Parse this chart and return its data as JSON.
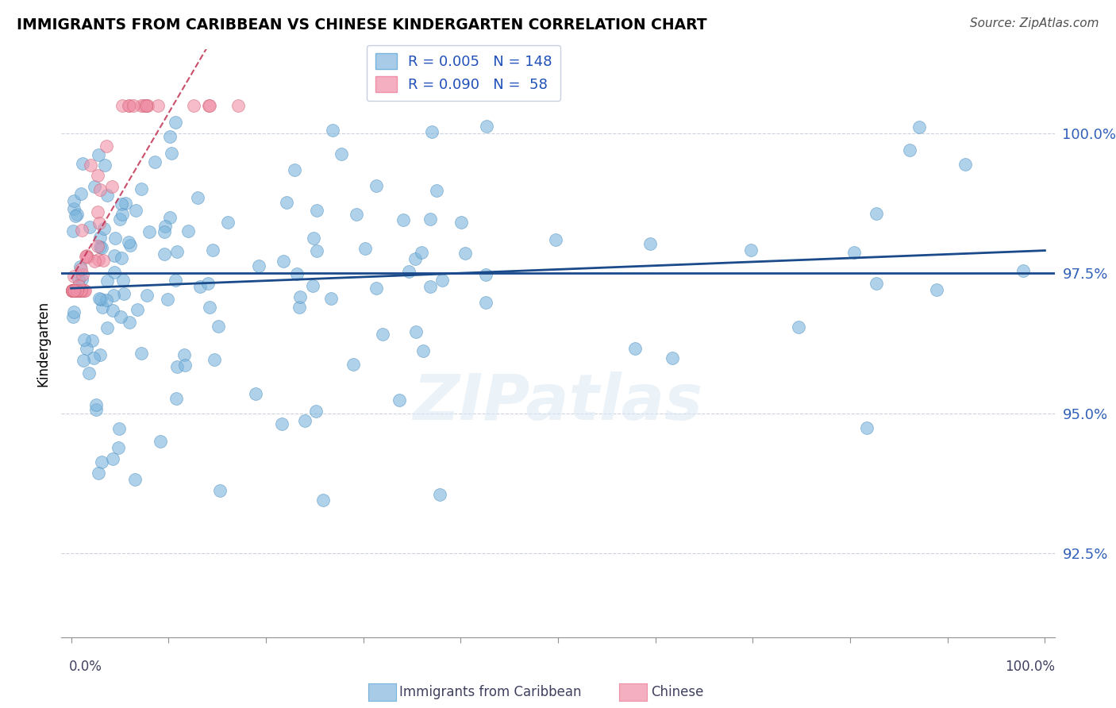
{
  "title": "IMMIGRANTS FROM CARIBBEAN VS CHINESE KINDERGARTEN CORRELATION CHART",
  "source": "Source: ZipAtlas.com",
  "ylabel": "Kindergarten",
  "r_caribbean": 0.005,
  "n_caribbean": 148,
  "r_chinese": 0.09,
  "n_chinese": 58,
  "color_caribbean": "#7ab4dc",
  "color_chinese": "#f090a8",
  "color_trend_caribbean": "#1a4a8a",
  "color_trend_chinese": "#c03050",
  "horizontal_line_y": 97.5,
  "horizontal_line_color": "#1a4a8a",
  "ytick_labels": [
    "92.5%",
    "95.0%",
    "97.5%",
    "100.0%"
  ],
  "ytick_values": [
    92.5,
    95.0,
    97.5,
    100.0
  ],
  "ylim": [
    91.0,
    101.5
  ],
  "xlim": [
    -0.01,
    1.01
  ],
  "watermark": "ZIPatlas",
  "legend_blue_label": "Immigrants from Caribbean",
  "legend_pink_label": "Chinese",
  "legend_color_blue": "#a8cce8",
  "legend_color_pink": "#f4b0c0"
}
